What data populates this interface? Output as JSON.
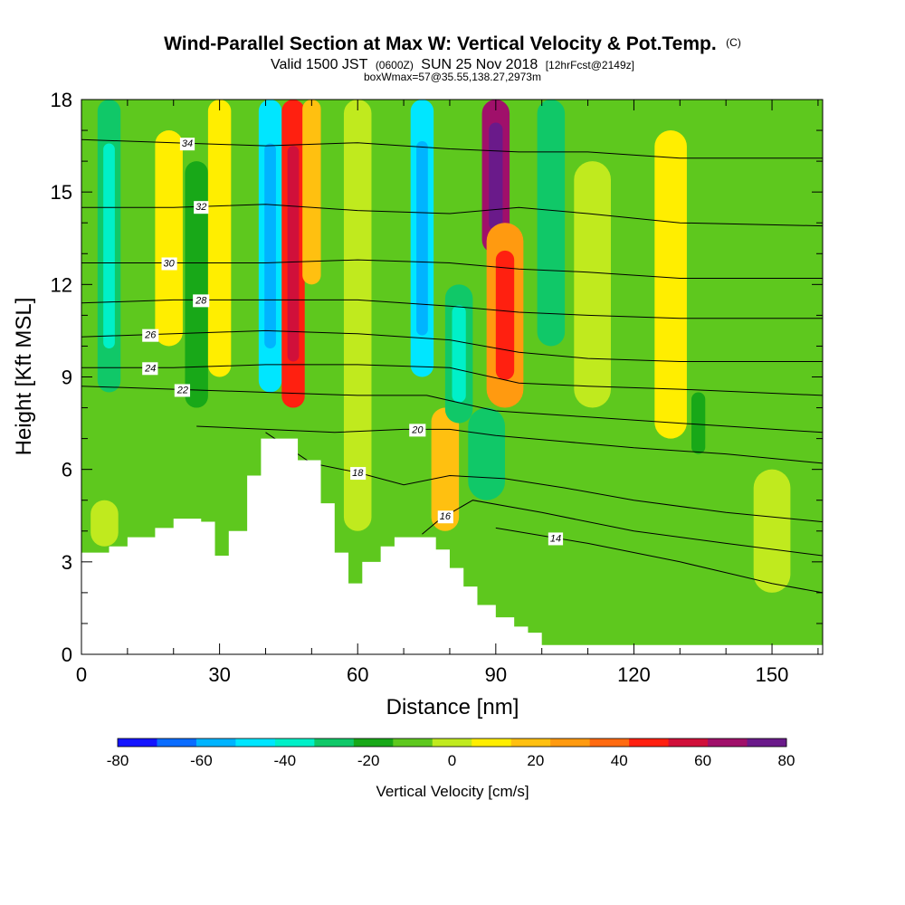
{
  "header": {
    "title_main": "Wind-Parallel Section at Max W: Vertical Velocity & Pot.Temp.",
    "title_mark": "(C)",
    "subtitle_a": "Valid 1500 JST",
    "subtitle_b": "(0600Z)",
    "subtitle_c": "SUN 25 Nov 2018",
    "subtitle_d": "[12hrFcst@2149z]",
    "subtitle_2": "boxWmax=57@35.55,138.27,2973m"
  },
  "chart_data": {
    "type": "heatmap",
    "xlabel": "Distance [nm]",
    "ylabel": "Height [Kft MSL]",
    "xlim": [
      0,
      161
    ],
    "ylim": [
      0,
      18
    ],
    "x_ticks": [
      "0",
      "30",
      "60",
      "90",
      "120",
      "150"
    ],
    "x_tick_values": [
      0,
      30,
      60,
      90,
      120,
      150
    ],
    "y_ticks": [
      "0",
      "3",
      "6",
      "9",
      "12",
      "15",
      "18"
    ],
    "y_tick_values": [
      0,
      3,
      6,
      9,
      12,
      15,
      18
    ],
    "colorbar": {
      "label": "Vertical Velocity [cm/s]",
      "ticks": [
        "-80",
        "-60",
        "-40",
        "-20",
        "0",
        "20",
        "40",
        "60",
        "80"
      ],
      "tick_values": [
        -80,
        -60,
        -40,
        -20,
        0,
        20,
        40,
        60,
        80
      ],
      "bins": [
        -80,
        -70,
        -60,
        -50,
        -40,
        -30,
        -20,
        -10,
        0,
        10,
        20,
        30,
        40,
        50,
        60,
        70,
        80
      ],
      "colors": [
        "#1414ff",
        "#0a6cff",
        "#00b4ff",
        "#00e6ff",
        "#00f0c8",
        "#10c868",
        "#18a818",
        "#5ec81e",
        "#c0ea1e",
        "#ffee00",
        "#ffc010",
        "#ff9a10",
        "#ff6a10",
        "#ff2010",
        "#d0103a",
        "#a0106a",
        "#6a1a8a"
      ]
    },
    "terrain": [
      [
        0,
        3.3
      ],
      [
        6,
        3.5
      ],
      [
        10,
        3.8
      ],
      [
        16,
        4.1
      ],
      [
        20,
        4.4
      ],
      [
        26,
        4.3
      ],
      [
        29,
        3.2
      ],
      [
        32,
        4.0
      ],
      [
        36,
        5.8
      ],
      [
        39,
        7.0
      ],
      [
        45,
        7.0
      ],
      [
        47,
        6.3
      ],
      [
        52,
        4.9
      ],
      [
        55,
        3.3
      ],
      [
        58,
        2.3
      ],
      [
        61,
        3.0
      ],
      [
        65,
        3.5
      ],
      [
        68,
        3.8
      ],
      [
        73,
        3.8
      ],
      [
        77,
        3.4
      ],
      [
        80,
        2.8
      ],
      [
        83,
        2.2
      ],
      [
        86,
        1.6
      ],
      [
        90,
        1.2
      ],
      [
        94,
        0.9
      ],
      [
        97,
        0.7
      ],
      [
        100,
        0.3
      ],
      [
        161,
        0.3
      ]
    ],
    "w_features": [
      {
        "x": 6,
        "y0": 8.5,
        "y1": 18,
        "w": 5,
        "value": -30
      },
      {
        "x": 19,
        "y0": 10,
        "y1": 17,
        "w": 6,
        "value": 12
      },
      {
        "x": 25,
        "y0": 8,
        "y1": 16,
        "w": 5,
        "value": -15
      },
      {
        "x": 30,
        "y0": 9,
        "y1": 18,
        "w": 5,
        "value": 10
      },
      {
        "x": 41,
        "y0": 8.5,
        "y1": 18,
        "w": 5,
        "value": -45
      },
      {
        "x": 46,
        "y0": 8,
        "y1": 18,
        "w": 5,
        "value": 50
      },
      {
        "x": 50,
        "y0": 12,
        "y1": 18,
        "w": 4,
        "value": 20
      },
      {
        "x": 60,
        "y0": 4,
        "y1": 18,
        "w": 6,
        "value": 8
      },
      {
        "x": 74,
        "y0": 9,
        "y1": 18,
        "w": 5,
        "value": -45
      },
      {
        "x": 79,
        "y0": 4,
        "y1": 8,
        "w": 6,
        "value": 22
      },
      {
        "x": 82,
        "y0": 7.5,
        "y1": 12,
        "w": 6,
        "value": -30
      },
      {
        "x": 88,
        "y0": 5,
        "y1": 8,
        "w": 8,
        "value": -25
      },
      {
        "x": 90,
        "y0": 13,
        "y1": 18,
        "w": 6,
        "value": 75
      },
      {
        "x": 92,
        "y0": 8,
        "y1": 14,
        "w": 8,
        "value": 35
      },
      {
        "x": 102,
        "y0": 10,
        "y1": 18,
        "w": 6,
        "value": -25
      },
      {
        "x": 111,
        "y0": 8,
        "y1": 16,
        "w": 8,
        "value": 0
      },
      {
        "x": 128,
        "y0": 7,
        "y1": 17,
        "w": 7,
        "value": 15
      },
      {
        "x": 134,
        "y0": 6.5,
        "y1": 8.5,
        "w": 3,
        "value": -15
      },
      {
        "x": 150,
        "y0": 2,
        "y1": 6,
        "w": 8,
        "value": 8
      },
      {
        "x": 5,
        "y0": 3.5,
        "y1": 5,
        "w": 6,
        "value": 5
      }
    ],
    "theta_contours": [
      {
        "label": "14",
        "value": 14,
        "label_x": 103,
        "points": [
          [
            90,
            4.1
          ],
          [
            110,
            3.6
          ],
          [
            130,
            3.0
          ],
          [
            150,
            2.3
          ],
          [
            161,
            2.0
          ]
        ]
      },
      {
        "label": "16",
        "value": 16,
        "label_x": 79,
        "points": [
          [
            74,
            3.9
          ],
          [
            78,
            4.4
          ],
          [
            85,
            5.0
          ],
          [
            100,
            4.6
          ],
          [
            120,
            4.0
          ],
          [
            140,
            3.6
          ],
          [
            161,
            3.2
          ]
        ]
      },
      {
        "label": "18",
        "value": 18,
        "label_x": 60,
        "points": [
          [
            40,
            7.2
          ],
          [
            50,
            6.2
          ],
          [
            60,
            5.9
          ],
          [
            70,
            5.5
          ],
          [
            80,
            5.8
          ],
          [
            92,
            5.7
          ],
          [
            105,
            5.4
          ],
          [
            120,
            5.0
          ],
          [
            140,
            4.6
          ],
          [
            161,
            4.3
          ]
        ]
      },
      {
        "label": "20",
        "value": 20,
        "label_x": 73,
        "points": [
          [
            25,
            7.4
          ],
          [
            40,
            7.3
          ],
          [
            55,
            7.2
          ],
          [
            70,
            7.3
          ],
          [
            80,
            7.3
          ],
          [
            90,
            7.1
          ],
          [
            105,
            6.9
          ],
          [
            120,
            6.7
          ],
          [
            140,
            6.5
          ],
          [
            161,
            6.2
          ]
        ]
      },
      {
        "label": "22",
        "value": 22,
        "label_x": 22,
        "points": [
          [
            0,
            8.7
          ],
          [
            20,
            8.6
          ],
          [
            40,
            8.5
          ],
          [
            60,
            8.4
          ],
          [
            75,
            8.4
          ],
          [
            90,
            7.9
          ],
          [
            110,
            7.7
          ],
          [
            130,
            7.5
          ],
          [
            161,
            7.2
          ]
        ]
      },
      {
        "label": "24",
        "value": 24,
        "label_x": 15,
        "points": [
          [
            0,
            9.3
          ],
          [
            20,
            9.3
          ],
          [
            40,
            9.4
          ],
          [
            60,
            9.4
          ],
          [
            80,
            9.3
          ],
          [
            95,
            8.8
          ],
          [
            110,
            8.7
          ],
          [
            130,
            8.6
          ],
          [
            161,
            8.4
          ]
        ]
      },
      {
        "label": "26",
        "value": 26,
        "label_x": 15,
        "points": [
          [
            0,
            10.3
          ],
          [
            20,
            10.4
          ],
          [
            40,
            10.5
          ],
          [
            60,
            10.4
          ],
          [
            80,
            10.2
          ],
          [
            95,
            9.8
          ],
          [
            110,
            9.6
          ],
          [
            130,
            9.5
          ],
          [
            161,
            9.5
          ]
        ]
      },
      {
        "label": "28",
        "value": 28,
        "label_x": 26,
        "points": [
          [
            0,
            11.4
          ],
          [
            20,
            11.5
          ],
          [
            40,
            11.5
          ],
          [
            60,
            11.5
          ],
          [
            80,
            11.3
          ],
          [
            95,
            11.1
          ],
          [
            110,
            11.0
          ],
          [
            130,
            10.9
          ],
          [
            161,
            10.9
          ]
        ]
      },
      {
        "label": "30",
        "value": 30,
        "label_x": 19,
        "points": [
          [
            0,
            12.7
          ],
          [
            20,
            12.7
          ],
          [
            40,
            12.7
          ],
          [
            60,
            12.8
          ],
          [
            80,
            12.7
          ],
          [
            95,
            12.5
          ],
          [
            110,
            12.4
          ],
          [
            130,
            12.2
          ],
          [
            161,
            12.2
          ]
        ]
      },
      {
        "label": "32",
        "value": 32,
        "label_x": 26,
        "points": [
          [
            0,
            14.5
          ],
          [
            20,
            14.5
          ],
          [
            40,
            14.6
          ],
          [
            60,
            14.4
          ],
          [
            80,
            14.3
          ],
          [
            95,
            14.5
          ],
          [
            110,
            14.3
          ],
          [
            130,
            14.0
          ],
          [
            161,
            13.9
          ]
        ]
      },
      {
        "label": "34",
        "value": 34,
        "label_x": 23,
        "points": [
          [
            0,
            16.7
          ],
          [
            20,
            16.6
          ],
          [
            40,
            16.5
          ],
          [
            60,
            16.6
          ],
          [
            80,
            16.4
          ],
          [
            95,
            16.3
          ],
          [
            110,
            16.3
          ],
          [
            130,
            16.1
          ],
          [
            161,
            16.1
          ]
        ]
      }
    ]
  }
}
